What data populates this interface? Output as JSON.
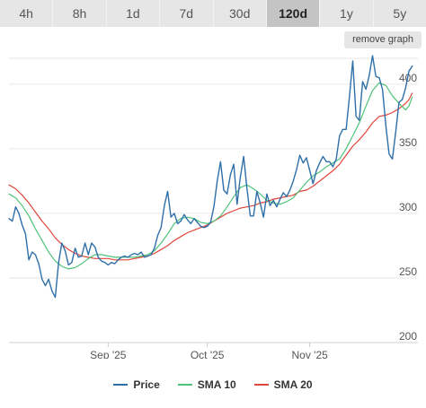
{
  "tabs": [
    {
      "label": "4h"
    },
    {
      "label": "8h"
    },
    {
      "label": "1d"
    },
    {
      "label": "7d"
    },
    {
      "label": "30d"
    },
    {
      "label": "120d",
      "active": true
    },
    {
      "label": "1y"
    },
    {
      "label": "5y"
    }
  ],
  "remove_graph_label": "remove graph",
  "chart_data": {
    "type": "line",
    "title": "",
    "xlabel": "",
    "ylabel": "",
    "ylim": [
      200,
      420
    ],
    "yticks": [
      200,
      250,
      300,
      350,
      400
    ],
    "xlim": [
      "2025-08-02",
      "2025-12-01"
    ],
    "xticks": [
      {
        "label": "Sep '25",
        "date": "2025-09-01"
      },
      {
        "label": "Oct '25",
        "date": "2025-10-01"
      },
      {
        "label": "Nov '25",
        "date": "2025-11-01"
      }
    ],
    "grid": true,
    "legend": "bottom",
    "series": [
      {
        "name": "Price",
        "color": "#2f6fa8",
        "points": [
          [
            "2025-08-02",
            296
          ],
          [
            "2025-08-03",
            294
          ],
          [
            "2025-08-04",
            305
          ],
          [
            "2025-08-05",
            300
          ],
          [
            "2025-08-06",
            291
          ],
          [
            "2025-08-07",
            284
          ],
          [
            "2025-08-08",
            264
          ],
          [
            "2025-08-09",
            270
          ],
          [
            "2025-08-10",
            268
          ],
          [
            "2025-08-11",
            261
          ],
          [
            "2025-08-12",
            249
          ],
          [
            "2025-08-13",
            244
          ],
          [
            "2025-08-14",
            249
          ],
          [
            "2025-08-15",
            240
          ],
          [
            "2025-08-16",
            235
          ],
          [
            "2025-08-17",
            262
          ],
          [
            "2025-08-18",
            277
          ],
          [
            "2025-08-19",
            271
          ],
          [
            "2025-08-20",
            260
          ],
          [
            "2025-08-21",
            262
          ],
          [
            "2025-08-22",
            273
          ],
          [
            "2025-08-23",
            266
          ],
          [
            "2025-08-24",
            267
          ],
          [
            "2025-08-25",
            277
          ],
          [
            "2025-08-26",
            268
          ],
          [
            "2025-08-27",
            277
          ],
          [
            "2025-08-28",
            274
          ],
          [
            "2025-08-29",
            266
          ],
          [
            "2025-08-30",
            263
          ],
          [
            "2025-08-31",
            262
          ],
          [
            "2025-09-01",
            260
          ],
          [
            "2025-09-02",
            262
          ],
          [
            "2025-09-03",
            261
          ],
          [
            "2025-09-04",
            264
          ],
          [
            "2025-09-05",
            266
          ],
          [
            "2025-09-06",
            267
          ],
          [
            "2025-09-07",
            266
          ],
          [
            "2025-09-08",
            268
          ],
          [
            "2025-09-09",
            269
          ],
          [
            "2025-09-10",
            268
          ],
          [
            "2025-09-11",
            270
          ],
          [
            "2025-09-12",
            266
          ],
          [
            "2025-09-13",
            267
          ],
          [
            "2025-09-14",
            268
          ],
          [
            "2025-09-15",
            273
          ],
          [
            "2025-09-16",
            283
          ],
          [
            "2025-09-17",
            289
          ],
          [
            "2025-09-18",
            306
          ],
          [
            "2025-09-19",
            317
          ],
          [
            "2025-09-20",
            297
          ],
          [
            "2025-09-21",
            300
          ],
          [
            "2025-09-22",
            292
          ],
          [
            "2025-09-23",
            294
          ],
          [
            "2025-09-24",
            299
          ],
          [
            "2025-09-25",
            295
          ],
          [
            "2025-09-26",
            292
          ],
          [
            "2025-09-27",
            296
          ],
          [
            "2025-09-28",
            293
          ],
          [
            "2025-09-29",
            290
          ],
          [
            "2025-09-30",
            289
          ],
          [
            "2025-10-01",
            290
          ],
          [
            "2025-10-02",
            293
          ],
          [
            "2025-10-03",
            305
          ],
          [
            "2025-10-04",
            325
          ],
          [
            "2025-10-05",
            340
          ],
          [
            "2025-10-06",
            318
          ],
          [
            "2025-10-07",
            315
          ],
          [
            "2025-10-08",
            330
          ],
          [
            "2025-10-09",
            338
          ],
          [
            "2025-10-10",
            307
          ],
          [
            "2025-10-11",
            328
          ],
          [
            "2025-10-12",
            344
          ],
          [
            "2025-10-13",
            319
          ],
          [
            "2025-10-14",
            298
          ],
          [
            "2025-10-15",
            298
          ],
          [
            "2025-10-16",
            317
          ],
          [
            "2025-10-17",
            308
          ],
          [
            "2025-10-18",
            297
          ],
          [
            "2025-10-19",
            315
          ],
          [
            "2025-10-20",
            306
          ],
          [
            "2025-10-21",
            310
          ],
          [
            "2025-10-22",
            305
          ],
          [
            "2025-10-23",
            311
          ],
          [
            "2025-10-24",
            316
          ],
          [
            "2025-10-25",
            313
          ],
          [
            "2025-10-26",
            318
          ],
          [
            "2025-10-27",
            325
          ],
          [
            "2025-10-28",
            334
          ],
          [
            "2025-10-29",
            345
          ],
          [
            "2025-10-30",
            339
          ],
          [
            "2025-10-31",
            343
          ],
          [
            "2025-11-01",
            333
          ],
          [
            "2025-11-02",
            323
          ],
          [
            "2025-11-03",
            333
          ],
          [
            "2025-11-04",
            339
          ],
          [
            "2025-11-05",
            344
          ],
          [
            "2025-11-06",
            340
          ],
          [
            "2025-11-07",
            340
          ],
          [
            "2025-11-08",
            336
          ],
          [
            "2025-11-09",
            342
          ],
          [
            "2025-11-10",
            360
          ],
          [
            "2025-11-11",
            365
          ],
          [
            "2025-11-12",
            365
          ],
          [
            "2025-11-13",
            390
          ],
          [
            "2025-11-14",
            418
          ],
          [
            "2025-11-15",
            375
          ],
          [
            "2025-11-16",
            372
          ],
          [
            "2025-11-17",
            402
          ],
          [
            "2025-11-18",
            396
          ],
          [
            "2025-11-19",
            407
          ],
          [
            "2025-11-20",
            422
          ],
          [
            "2025-11-21",
            406
          ],
          [
            "2025-11-22",
            405
          ],
          [
            "2025-11-23",
            396
          ],
          [
            "2025-11-24",
            368
          ],
          [
            "2025-11-25",
            346
          ],
          [
            "2025-11-26",
            342
          ],
          [
            "2025-11-27",
            363
          ],
          [
            "2025-11-28",
            386
          ],
          [
            "2025-11-29",
            388
          ],
          [
            "2025-11-30",
            397
          ],
          [
            "2025-12-01",
            410
          ],
          [
            "2025-12-02",
            414
          ]
        ]
      },
      {
        "name": "SMA 10",
        "color": "#4fc37a",
        "points": [
          [
            "2025-08-02",
            315
          ],
          [
            "2025-08-04",
            312
          ],
          [
            "2025-08-06",
            306
          ],
          [
            "2025-08-08",
            298
          ],
          [
            "2025-08-10",
            288
          ],
          [
            "2025-08-12",
            279
          ],
          [
            "2025-08-14",
            270
          ],
          [
            "2025-08-16",
            263
          ],
          [
            "2025-08-18",
            259
          ],
          [
            "2025-08-20",
            257
          ],
          [
            "2025-08-22",
            258
          ],
          [
            "2025-08-24",
            261
          ],
          [
            "2025-08-26",
            265
          ],
          [
            "2025-08-28",
            268
          ],
          [
            "2025-08-30",
            268
          ],
          [
            "2025-09-01",
            267
          ],
          [
            "2025-09-03",
            266
          ],
          [
            "2025-09-05",
            266
          ],
          [
            "2025-09-07",
            266
          ],
          [
            "2025-09-09",
            266
          ],
          [
            "2025-09-11",
            267
          ],
          [
            "2025-09-13",
            268
          ],
          [
            "2025-09-15",
            271
          ],
          [
            "2025-09-17",
            277
          ],
          [
            "2025-09-19",
            284
          ],
          [
            "2025-09-21",
            292
          ],
          [
            "2025-09-23",
            296
          ],
          [
            "2025-09-25",
            297
          ],
          [
            "2025-09-27",
            296
          ],
          [
            "2025-09-29",
            293
          ],
          [
            "2025-10-01",
            292
          ],
          [
            "2025-10-03",
            294
          ],
          [
            "2025-10-05",
            298
          ],
          [
            "2025-10-07",
            305
          ],
          [
            "2025-10-09",
            313
          ],
          [
            "2025-10-11",
            320
          ],
          [
            "2025-10-13",
            322
          ],
          [
            "2025-10-15",
            319
          ],
          [
            "2025-10-17",
            315
          ],
          [
            "2025-10-19",
            310
          ],
          [
            "2025-10-21",
            308
          ],
          [
            "2025-10-23",
            307
          ],
          [
            "2025-10-25",
            309
          ],
          [
            "2025-10-27",
            312
          ],
          [
            "2025-10-29",
            318
          ],
          [
            "2025-10-31",
            324
          ],
          [
            "2025-11-02",
            329
          ],
          [
            "2025-11-04",
            332
          ],
          [
            "2025-11-06",
            336
          ],
          [
            "2025-11-08",
            339
          ],
          [
            "2025-11-10",
            342
          ],
          [
            "2025-11-12",
            350
          ],
          [
            "2025-11-14",
            360
          ],
          [
            "2025-11-16",
            370
          ],
          [
            "2025-11-18",
            383
          ],
          [
            "2025-11-20",
            395
          ],
          [
            "2025-11-22",
            401
          ],
          [
            "2025-11-24",
            399
          ],
          [
            "2025-11-26",
            391
          ],
          [
            "2025-11-28",
            385
          ],
          [
            "2025-11-30",
            380
          ],
          [
            "2025-12-01",
            383
          ],
          [
            "2025-12-02",
            390
          ]
        ]
      },
      {
        "name": "SMA 20",
        "color": "#e0463a",
        "points": [
          [
            "2025-08-02",
            322
          ],
          [
            "2025-08-04",
            319
          ],
          [
            "2025-08-06",
            314
          ],
          [
            "2025-08-08",
            308
          ],
          [
            "2025-08-10",
            301
          ],
          [
            "2025-08-12",
            294
          ],
          [
            "2025-08-14",
            288
          ],
          [
            "2025-08-16",
            281
          ],
          [
            "2025-08-18",
            276
          ],
          [
            "2025-08-20",
            272
          ],
          [
            "2025-08-22",
            269
          ],
          [
            "2025-08-24",
            267
          ],
          [
            "2025-08-26",
            266
          ],
          [
            "2025-08-28",
            265
          ],
          [
            "2025-08-30",
            265
          ],
          [
            "2025-09-01",
            265
          ],
          [
            "2025-09-03",
            264
          ],
          [
            "2025-09-05",
            264
          ],
          [
            "2025-09-07",
            264
          ],
          [
            "2025-09-09",
            265
          ],
          [
            "2025-09-11",
            266
          ],
          [
            "2025-09-13",
            267
          ],
          [
            "2025-09-15",
            269
          ],
          [
            "2025-09-17",
            272
          ],
          [
            "2025-09-19",
            275
          ],
          [
            "2025-09-21",
            279
          ],
          [
            "2025-09-23",
            282
          ],
          [
            "2025-09-25",
            285
          ],
          [
            "2025-09-27",
            287
          ],
          [
            "2025-09-29",
            289
          ],
          [
            "2025-10-01",
            291
          ],
          [
            "2025-10-03",
            294
          ],
          [
            "2025-10-05",
            297
          ],
          [
            "2025-10-07",
            300
          ],
          [
            "2025-10-09",
            302
          ],
          [
            "2025-10-11",
            304
          ],
          [
            "2025-10-13",
            305
          ],
          [
            "2025-10-15",
            306
          ],
          [
            "2025-10-17",
            308
          ],
          [
            "2025-10-19",
            309
          ],
          [
            "2025-10-21",
            311
          ],
          [
            "2025-10-23",
            312
          ],
          [
            "2025-10-25",
            313
          ],
          [
            "2025-10-27",
            314
          ],
          [
            "2025-10-29",
            317
          ],
          [
            "2025-10-31",
            318
          ],
          [
            "2025-11-02",
            321
          ],
          [
            "2025-11-04",
            325
          ],
          [
            "2025-11-06",
            329
          ],
          [
            "2025-11-08",
            333
          ],
          [
            "2025-11-10",
            338
          ],
          [
            "2025-11-12",
            345
          ],
          [
            "2025-11-14",
            352
          ],
          [
            "2025-11-16",
            357
          ],
          [
            "2025-11-18",
            363
          ],
          [
            "2025-11-20",
            370
          ],
          [
            "2025-11-22",
            375
          ],
          [
            "2025-11-24",
            376
          ],
          [
            "2025-11-26",
            378
          ],
          [
            "2025-11-28",
            381
          ],
          [
            "2025-11-30",
            385
          ],
          [
            "2025-12-01",
            388
          ],
          [
            "2025-12-02",
            393
          ]
        ]
      }
    ]
  }
}
